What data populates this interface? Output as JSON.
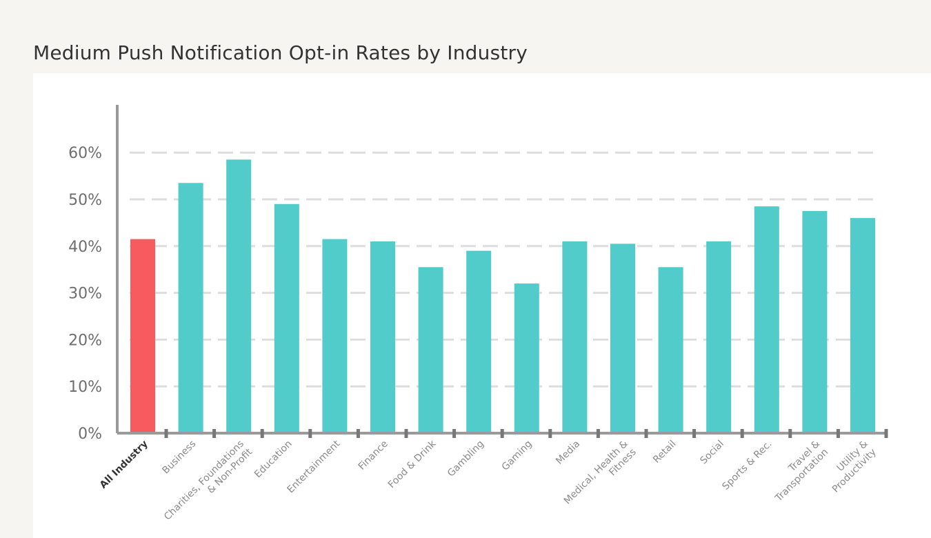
{
  "title": "Medium Push Notification Opt-in Rates by Industry",
  "colors": {
    "highlight": "#f75a5f",
    "bar": "#52cbcb",
    "grid": "#dddddd",
    "axis": "#9a9a9a"
  },
  "chart_data": {
    "type": "bar",
    "title": "Medium Push Notification Opt-in Rates by Industry",
    "xlabel": "",
    "ylabel": "",
    "ylim": [
      0,
      60
    ],
    "yticks": [
      "0%",
      "10%",
      "20%",
      "30%",
      "40%",
      "50%",
      "60%"
    ],
    "ytick_values": [
      0,
      10,
      20,
      30,
      40,
      50,
      60
    ],
    "grid": true,
    "highlight_index": 0,
    "categories": [
      [
        "All Industry"
      ],
      [
        "Business"
      ],
      [
        "Charities, Foundations",
        "& Non-Profit"
      ],
      [
        "Education"
      ],
      [
        "Entertainment"
      ],
      [
        "Finance"
      ],
      [
        "Food & Drink"
      ],
      [
        "Gambling"
      ],
      [
        "Gaming"
      ],
      [
        "Media"
      ],
      [
        "Medical, Health &",
        "Fitness"
      ],
      [
        "Retail"
      ],
      [
        "Social"
      ],
      [
        "Sports & Rec."
      ],
      [
        "Travel &",
        "Transportation"
      ],
      [
        "Utility &",
        "Productivity"
      ]
    ],
    "values": [
      41.5,
      53.5,
      58.5,
      49,
      41.5,
      41,
      35.5,
      39,
      32,
      41,
      40.5,
      35.5,
      41,
      48.5,
      47.5,
      46
    ]
  }
}
